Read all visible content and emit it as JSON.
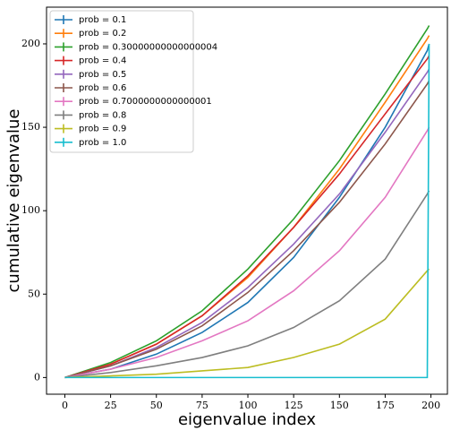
{
  "chart_data": {
    "type": "line",
    "xlabel": "eigenvalue index",
    "ylabel": "cumulative eigenvalue",
    "x": [
      0,
      25,
      50,
      75,
      100,
      125,
      150,
      175,
      198,
      199
    ],
    "series": [
      {
        "name": "prob = 0.1",
        "color": "#1f77b4",
        "values": [
          0,
          5,
          14,
          27,
          45,
          72,
          108,
          150,
          196,
          200
        ]
      },
      {
        "name": "prob = 0.2",
        "color": "#ff7f0e",
        "values": [
          0,
          8,
          20,
          37,
          60,
          90,
          125,
          165,
          203,
          205
        ]
      },
      {
        "name": "prob = 0.30000000000000004",
        "color": "#2ca02c",
        "values": [
          0,
          9,
          22,
          40,
          65,
          95,
          130,
          170,
          209,
          211
        ]
      },
      {
        "name": "prob = 0.4",
        "color": "#d62728",
        "values": [
          0,
          8,
          20,
          37,
          61,
          90,
          122,
          158,
          191,
          193
        ]
      },
      {
        "name": "prob = 0.5",
        "color": "#9467bd",
        "values": [
          0,
          7,
          18,
          33,
          54,
          80,
          110,
          147,
          183,
          185
        ]
      },
      {
        "name": "prob = 0.6",
        "color": "#8c564b",
        "values": [
          0,
          7,
          17,
          31,
          51,
          76,
          105,
          140,
          176,
          178
        ]
      },
      {
        "name": "prob = 0.7000000000000001",
        "color": "#e377c2",
        "values": [
          0,
          5,
          12,
          22,
          34,
          52,
          76,
          108,
          148,
          150
        ]
      },
      {
        "name": "prob = 0.8",
        "color": "#7f7f7f",
        "values": [
          0,
          3,
          7,
          12,
          19,
          30,
          46,
          71,
          110,
          112
        ]
      },
      {
        "name": "prob = 0.9",
        "color": "#bcbd22",
        "values": [
          0,
          1,
          2,
          4,
          6,
          12,
          20,
          35,
          64,
          65
        ]
      },
      {
        "name": "prob = 1.0",
        "color": "#17becf",
        "values": [
          0,
          0,
          0,
          0,
          0,
          0,
          0,
          0,
          0,
          200
        ]
      }
    ],
    "xlim": [
      -10,
      209
    ],
    "ylim": [
      -10,
      222
    ],
    "xticks": [
      0,
      25,
      50,
      75,
      100,
      125,
      150,
      175,
      200
    ],
    "yticks": [
      0,
      50,
      100,
      150,
      200
    ],
    "legend": "upper left"
  }
}
